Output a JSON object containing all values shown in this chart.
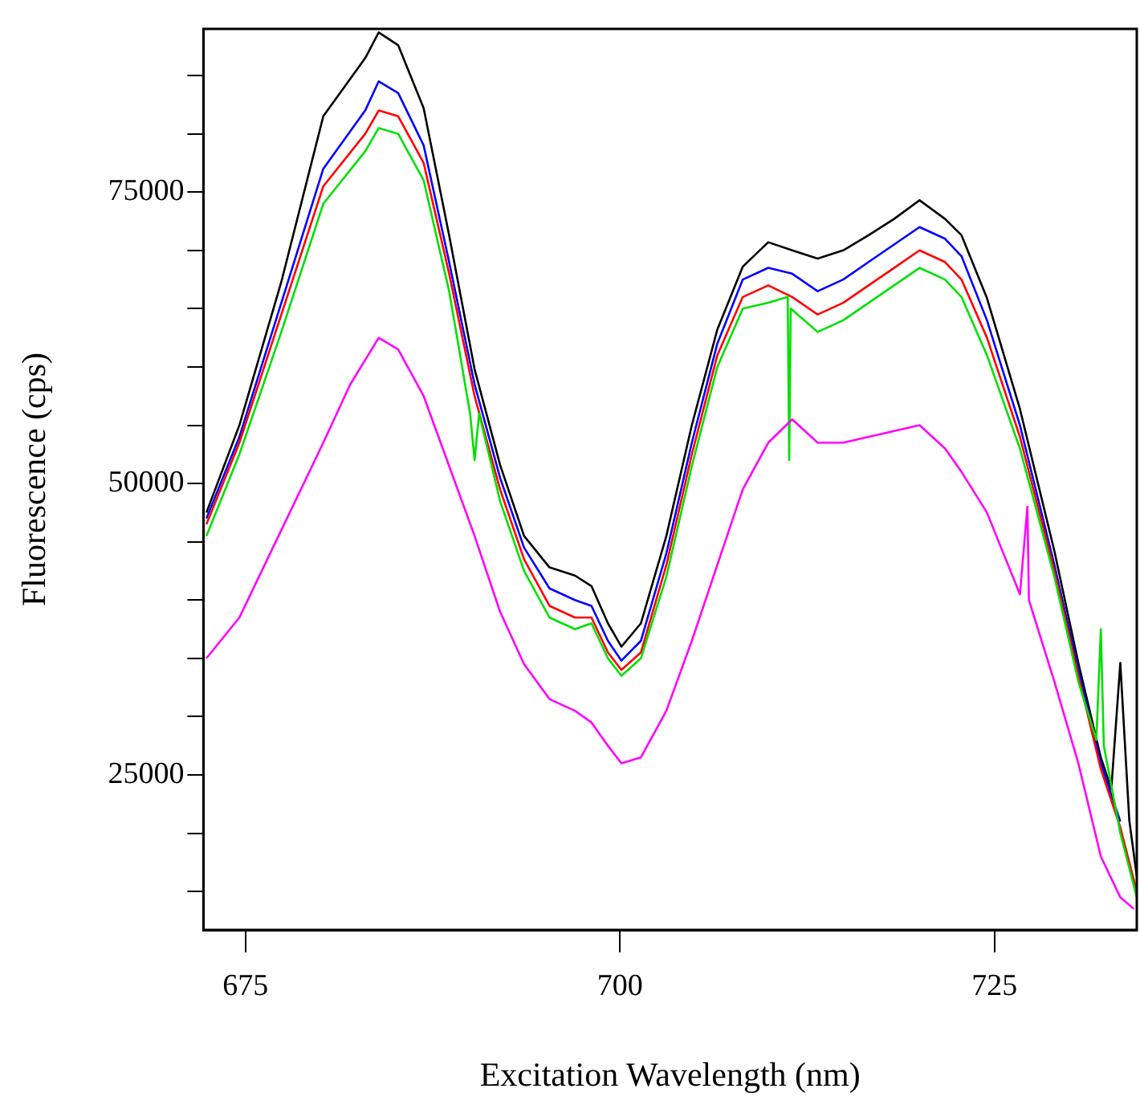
{
  "chart_data": {
    "type": "line",
    "xlabel": "Excitation Wavelength (nm)",
    "ylabel": "Fluorescence (cps)",
    "xlim": [
      672.2,
      734.5
    ],
    "xticks": [
      675,
      700,
      725
    ],
    "ylim": [
      11700,
      89000
    ],
    "yticks": [
      {
        "value": 15000,
        "label": null
      },
      {
        "value": 20000,
        "label": null
      },
      25000,
      {
        "value": 30000,
        "label": null
      },
      {
        "value": 35000,
        "label": null
      },
      {
        "value": 40000,
        "label": null
      },
      {
        "value": 45000,
        "label": null
      },
      50000,
      {
        "value": 55000,
        "label": null
      },
      {
        "value": 60000,
        "label": null
      },
      {
        "value": 65000,
        "label": null
      },
      {
        "value": 70000,
        "label": null
      },
      75000,
      {
        "value": 80000,
        "label": null
      },
      {
        "value": 85000,
        "label": null
      }
    ],
    "grid": false,
    "legend": false,
    "marker": "none",
    "line_style": "solid",
    "series": [
      {
        "color": "#ff00ff",
        "x": [
          672.4,
          674.6,
          677.4,
          680.2,
          682,
          683.9,
          685.2,
          686.9,
          688.6,
          690.3,
          692,
          693.6,
          695.3,
          697,
          698.1,
          699.2,
          700.1,
          701.4,
          703.1,
          704.8,
          706.5,
          708.2,
          709.9,
          711.5,
          713.2,
          714.9,
          716.6,
          718.3,
          720,
          721.7,
          722.8,
          724.5,
          726.7,
          727.2,
          727.3,
          729,
          730.6,
          732.1,
          733.4,
          734.3
        ],
        "values": [
          35000,
          38500,
          46000,
          53500,
          58500,
          62500,
          61500,
          57500,
          51500,
          45500,
          39000,
          34500,
          31500,
          30500,
          29500,
          27500,
          26000,
          26500,
          30500,
          36500,
          43000,
          49500,
          53500,
          55500,
          53500,
          53500,
          54000,
          54500,
          55000,
          53000,
          51000,
          47500,
          40500,
          48000,
          40000,
          33000,
          26000,
          18000,
          14500,
          13500
        ]
      },
      {
        "color": "#00e000",
        "x": [
          672.4,
          674.6,
          677.4,
          680.2,
          683,
          683.9,
          685.2,
          686.9,
          688.6,
          690,
          690.3,
          690.6,
          692,
          693.6,
          695.3,
          697,
          698.1,
          699.2,
          700.1,
          701.4,
          703.1,
          704.8,
          706.5,
          708.2,
          709.9,
          711.2,
          711.3,
          711.4,
          713.2,
          714.9,
          716.6,
          718.3,
          720,
          721.7,
          722.8,
          724.5,
          726.7,
          729,
          730.6,
          731.8,
          732.1,
          732.3,
          733.4,
          734.5
        ],
        "values": [
          45500,
          52500,
          63000,
          74000,
          78500,
          80500,
          80000,
          76000,
          66500,
          56000,
          52000,
          56000,
          48500,
          42500,
          38500,
          37500,
          38000,
          35000,
          33500,
          35000,
          42000,
          51500,
          60000,
          65000,
          65500,
          66000,
          52000,
          65000,
          63000,
          64000,
          65500,
          67000,
          68500,
          67500,
          66000,
          61000,
          53000,
          42000,
          33000,
          28000,
          37500,
          27500,
          20000,
          14500
        ]
      },
      {
        "color": "#ff0000",
        "x": [
          672.4,
          674.6,
          677.4,
          680.2,
          683,
          683.9,
          685.2,
          686.9,
          688.6,
          690.3,
          692,
          693.6,
          695.3,
          697,
          698.1,
          699.2,
          700.1,
          701.4,
          703.1,
          704.8,
          706.5,
          708.2,
          709.9,
          711.5,
          713.2,
          714.9,
          716.6,
          718.3,
          720,
          721.7,
          722.8,
          724.5,
          726.7,
          729,
          730.6,
          732.1,
          733.4,
          734.5
        ],
        "values": [
          46500,
          53500,
          64500,
          75500,
          80000,
          82000,
          81500,
          77500,
          68000,
          57500,
          49500,
          43500,
          39500,
          38500,
          38500,
          35500,
          34000,
          35500,
          43000,
          52500,
          61000,
          66000,
          67000,
          66000,
          64500,
          65500,
          67000,
          68500,
          70000,
          69000,
          67500,
          62500,
          54000,
          42500,
          33500,
          25500,
          20500,
          15000
        ]
      },
      {
        "color": "#0000ff",
        "x": [
          672.4,
          674.6,
          677.4,
          680.2,
          683,
          683.9,
          685.2,
          686.9,
          688.6,
          690.3,
          692,
          693.6,
          695.3,
          697,
          698.1,
          699.2,
          700.1,
          701.4,
          703.1,
          704.8,
          706.5,
          708.2,
          709.9,
          711.5,
          713.2,
          714.9,
          716.6,
          718.3,
          720,
          721.7,
          722.8,
          724.5,
          726.7,
          729,
          730.6,
          732.1,
          733.4
        ],
        "values": [
          47000,
          54000,
          65500,
          77000,
          82000,
          84500,
          83500,
          79000,
          69000,
          58500,
          50500,
          44500,
          41000,
          40000,
          39500,
          36500,
          34800,
          36500,
          44000,
          53500,
          62000,
          67500,
          68500,
          68000,
          66500,
          67500,
          69000,
          70500,
          72000,
          71000,
          69500,
          64000,
          55000,
          43000,
          34000,
          26000,
          21000
        ]
      },
      {
        "color": "#000000",
        "x": [
          672.4,
          674.6,
          677.4,
          680.2,
          683,
          683.9,
          685.2,
          686.9,
          688.6,
          690.3,
          692,
          693.6,
          695.3,
          697,
          698.1,
          699.2,
          700.1,
          701.4,
          703.1,
          704.8,
          706.5,
          708.2,
          709.9,
          711.5,
          713.2,
          714.9,
          716.6,
          718.3,
          720,
          721.7,
          722.8,
          724.5,
          726.7,
          729,
          730.6,
          732.1,
          732.8,
          733.4,
          734,
          734.5
        ],
        "values": [
          47500,
          55000,
          67300,
          81500,
          86500,
          88700,
          87600,
          82200,
          71300,
          59800,
          51600,
          45500,
          42800,
          42100,
          41200,
          38000,
          36000,
          38000,
          45500,
          55000,
          63200,
          68600,
          70700,
          70000,
          69300,
          70000,
          71300,
          72700,
          74300,
          72700,
          71300,
          65900,
          56400,
          44200,
          34600,
          26500,
          23800,
          34600,
          21100,
          16300
        ]
      }
    ]
  }
}
